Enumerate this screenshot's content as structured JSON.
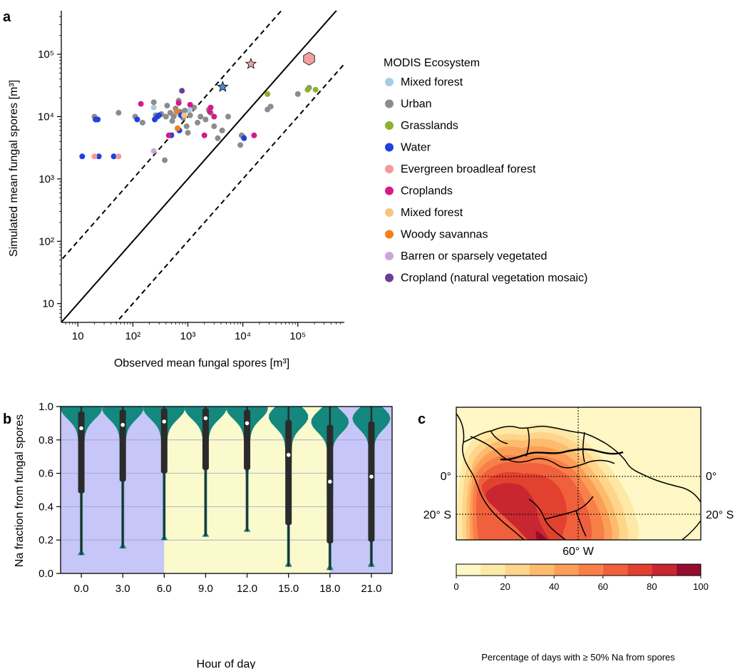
{
  "panel_labels": {
    "a": "a",
    "b": "b",
    "c": "c"
  },
  "chart_data": [
    {
      "panel": "a",
      "type": "scatter",
      "xlabel": "Observed mean fungal spores [m³]",
      "ylabel": "Simulated mean fungal spores [m³]",
      "xscale": "log",
      "yscale": "log",
      "xlim": [
        5,
        700000
      ],
      "ylim": [
        5,
        500000
      ],
      "xticks": [
        "10",
        "10²",
        "10³",
        "10⁴",
        "10⁵"
      ],
      "yticks": [
        "10",
        "10²",
        "10³",
        "10⁴",
        "10⁵"
      ],
      "lines": [
        {
          "style": "solid",
          "relation": "y = x"
        },
        {
          "style": "dashed",
          "relation": "y = 10x"
        },
        {
          "style": "dashed",
          "relation": "y = x/10"
        }
      ],
      "legend": {
        "title": "MODIS Ecosystem",
        "placement": "right",
        "entries": [
          {
            "label": "Mixed forest",
            "color": "#a6cee3"
          },
          {
            "label": "Urban",
            "color": "#8c8c8c"
          },
          {
            "label": "Grasslands",
            "color": "#8db22a"
          },
          {
            "label": "Water",
            "color": "#1f3fe0"
          },
          {
            "label": "Evergreen broadleaf forest",
            "color": "#f49a9a"
          },
          {
            "label": "Croplands",
            "color": "#d01c8b"
          },
          {
            "label": "Mixed forest",
            "color": "#f7c37f"
          },
          {
            "label": "Woody savannas",
            "color": "#f57f17"
          },
          {
            "label": "Barren or sparsely vegetated",
            "color": "#c9a8d8"
          },
          {
            "label": "Cropland (natural vegetation mosaic)",
            "color": "#6a3d9a"
          }
        ]
      },
      "series": [
        {
          "name": "Mixed forest",
          "color": "#a6cee3",
          "points": [
            [
              240,
              14000
            ],
            [
              600,
              11000
            ],
            [
              1050,
              12500
            ]
          ]
        },
        {
          "name": "Urban",
          "color": "#8c8c8c",
          "points": [
            [
              20,
              10000
            ],
            [
              55,
              11500
            ],
            [
              110,
              10000
            ],
            [
              150,
              8000
            ],
            [
              240,
              17000
            ],
            [
              260,
              10500
            ],
            [
              330,
              11000
            ],
            [
              380,
              2000
            ],
            [
              400,
              10000
            ],
            [
              420,
              15000
            ],
            [
              480,
              11500
            ],
            [
              520,
              8500
            ],
            [
              550,
              10000
            ],
            [
              600,
              13500
            ],
            [
              650,
              6500
            ],
            [
              680,
              18000
            ],
            [
              720,
              12000
            ],
            [
              780,
              11000
            ],
            [
              820,
              9500
            ],
            [
              880,
              12500
            ],
            [
              950,
              7000
            ],
            [
              1000,
              5500
            ],
            [
              1100,
              10500
            ],
            [
              1300,
              14000
            ],
            [
              1500,
              8000
            ],
            [
              1700,
              10000
            ],
            [
              2100,
              9000
            ],
            [
              2400,
              13000
            ],
            [
              2600,
              11500
            ],
            [
              3000,
              7000
            ],
            [
              3500,
              4500
            ],
            [
              4200,
              6000
            ],
            [
              5400,
              10000
            ],
            [
              9000,
              3500
            ],
            [
              9500,
              5000
            ],
            [
              10000,
              4800
            ],
            [
              28000,
              13000
            ],
            [
              32000,
              14500
            ],
            [
              100000,
              23000
            ],
            [
              160000,
              29000
            ]
          ]
        },
        {
          "name": "Grasslands",
          "color": "#8db22a",
          "points": [
            [
              28000,
              23000
            ],
            [
              150000,
              27000
            ],
            [
              210000,
              27000
            ]
          ]
        },
        {
          "name": "Water",
          "color": "#1f3fe0",
          "points": [
            [
              12,
              2300
            ],
            [
              21,
              9000
            ],
            [
              23,
              9000
            ],
            [
              24,
              2300
            ],
            [
              45,
              2300
            ],
            [
              120,
              9000
            ],
            [
              250,
              9000
            ],
            [
              280,
              10000
            ],
            [
              300,
              10500
            ],
            [
              500,
              5000
            ],
            [
              700,
              6000
            ],
            [
              750,
              10500
            ],
            [
              10500,
              4500
            ]
          ]
        },
        {
          "name": "Evergreen broadleaf forest",
          "color": "#f49a9a",
          "points": [
            [
              20,
              2300
            ],
            [
              55,
              2300
            ]
          ]
        },
        {
          "name": "Croplands",
          "color": "#d01c8b",
          "points": [
            [
              140,
              16000
            ],
            [
              450,
              5000
            ],
            [
              680,
              16500
            ],
            [
              1100,
              15500
            ],
            [
              2000,
              5000
            ],
            [
              2500,
              12000
            ],
            [
              2600,
              14000
            ],
            [
              3000,
              10000
            ],
            [
              16000,
              5000
            ]
          ]
        },
        {
          "name": "Mixed forest",
          "color": "#f7c37f",
          "points": [
            [
              850,
              10500
            ]
          ]
        },
        {
          "name": "Woody savannas",
          "color": "#f57f17",
          "points": [
            [
              620,
              12000
            ],
            [
              650,
              6500
            ]
          ]
        },
        {
          "name": "Barren or sparsely vegetated",
          "color": "#c9a8d8",
          "points": [
            [
              240,
              2800
            ]
          ]
        },
        {
          "name": "Cropland (natural vegetation mosaic)",
          "color": "#6a3d9a",
          "points": [
            [
              780,
              26000
            ]
          ]
        }
      ],
      "highlights": [
        {
          "shape": "star",
          "color": "#4a8fd0",
          "x": 4300,
          "y": 30000
        },
        {
          "shape": "star",
          "color": "#f4a0a0",
          "x": 14000,
          "y": 70000
        },
        {
          "shape": "hexagon",
          "color": "#f4a0a0",
          "x": 160000,
          "y": 85000
        }
      ]
    },
    {
      "panel": "b",
      "type": "violin",
      "xlabel": "Hour of day",
      "ylabel": "Na fraction from fungal spores",
      "categories": [
        "0.0",
        "3.0",
        "6.0",
        "9.0",
        "12.0",
        "15.0",
        "18.0",
        "21.0"
      ],
      "yticks": [
        "0.0",
        "0.2",
        "0.4",
        "0.6",
        "0.8",
        "1.0"
      ],
      "ylim": [
        0,
        1
      ],
      "grid": true,
      "violin_color": "#14877f",
      "background": [
        {
          "from_hour": -1.5,
          "to_hour": 6,
          "color": "#c6c6f8",
          "meaning": "night"
        },
        {
          "from_hour": 6,
          "to_hour": 18,
          "color": "#fafacd",
          "meaning": "day"
        },
        {
          "from_hour": 18,
          "to_hour": 22.5,
          "color": "#c6c6f8",
          "meaning": "night"
        }
      ],
      "violins": [
        {
          "hour": 0.0,
          "median": 0.87,
          "q1": 0.48,
          "q3": 0.97,
          "min": 0.11,
          "max": 1.0
        },
        {
          "hour": 3.0,
          "median": 0.89,
          "q1": 0.55,
          "q3": 0.98,
          "min": 0.15,
          "max": 1.0
        },
        {
          "hour": 6.0,
          "median": 0.91,
          "q1": 0.6,
          "q3": 0.99,
          "min": 0.2,
          "max": 1.0
        },
        {
          "hour": 9.0,
          "median": 0.93,
          "q1": 0.62,
          "q3": 0.99,
          "min": 0.22,
          "max": 1.0
        },
        {
          "hour": 12.0,
          "median": 0.9,
          "q1": 0.62,
          "q3": 0.98,
          "min": 0.25,
          "max": 1.0
        },
        {
          "hour": 15.0,
          "median": 0.71,
          "q1": 0.29,
          "q3": 0.92,
          "min": 0.04,
          "max": 1.0
        },
        {
          "hour": 18.0,
          "median": 0.55,
          "q1": 0.18,
          "q3": 0.89,
          "min": 0.02,
          "max": 1.0
        },
        {
          "hour": 21.0,
          "median": 0.58,
          "q1": 0.19,
          "q3": 0.91,
          "min": 0.04,
          "max": 1.0
        }
      ]
    },
    {
      "panel": "c",
      "type": "map",
      "map_labels": {
        "lat_0": "0°",
        "lat_20s": "20° S",
        "lon_60w": "60° W"
      },
      "colorbar": {
        "label": "Percentage of days with ≥ 50% Na from spores",
        "ticks": [
          "0",
          "20",
          "40",
          "60",
          "80",
          "100"
        ],
        "levels": [
          0,
          10,
          20,
          30,
          40,
          50,
          60,
          70,
          80,
          90,
          100
        ],
        "colors": [
          "#fff7c5",
          "#fee8a6",
          "#fed58a",
          "#fdbb6e",
          "#fc9e58",
          "#f88048",
          "#f0603c",
          "#e3412f",
          "#c82631",
          "#960d2e"
        ]
      }
    }
  ]
}
